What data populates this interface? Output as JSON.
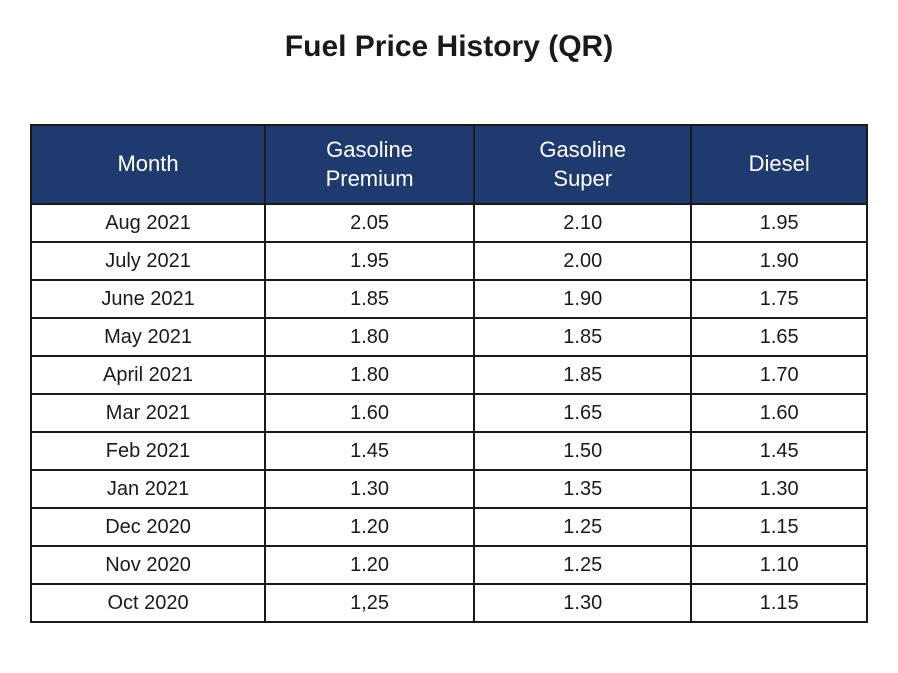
{
  "title": "Fuel Price History (QR)",
  "table": {
    "type": "table",
    "header_bg_color": "#1e3a6e",
    "header_text_color": "#ffffff",
    "border_color": "#1a1a1a",
    "cell_bg_color": "#ffffff",
    "cell_text_color": "#1a1a1a",
    "title_fontsize": 30,
    "header_fontsize": 22,
    "cell_fontsize": 20,
    "columns": [
      {
        "key": "month",
        "label": "Month",
        "width_pct": 28
      },
      {
        "key": "premium",
        "label": "Gasoline\nPremium",
        "width_pct": 25
      },
      {
        "key": "super",
        "label": "Gasoline\nSuper",
        "width_pct": 26
      },
      {
        "key": "diesel",
        "label": "Diesel",
        "width_pct": 21
      }
    ],
    "rows": [
      {
        "month": "Aug 2021",
        "premium": "2.05",
        "super": "2.10",
        "diesel": "1.95"
      },
      {
        "month": "July 2021",
        "premium": "1.95",
        "super": "2.00",
        "diesel": "1.90"
      },
      {
        "month": "June 2021",
        "premium": "1.85",
        "super": "1.90",
        "diesel": "1.75"
      },
      {
        "month": "May 2021",
        "premium": "1.80",
        "super": "1.85",
        "diesel": "1.65"
      },
      {
        "month": "April 2021",
        "premium": "1.80",
        "super": "1.85",
        "diesel": "1.70"
      },
      {
        "month": "Mar 2021",
        "premium": "1.60",
        "super": "1.65",
        "diesel": "1.60"
      },
      {
        "month": "Feb 2021",
        "premium": "1.45",
        "super": "1.50",
        "diesel": "1.45"
      },
      {
        "month": "Jan 2021",
        "premium": "1.30",
        "super": "1.35",
        "diesel": "1.30"
      },
      {
        "month": "Dec 2020",
        "premium": "1.20",
        "super": "1.25",
        "diesel": "1.15"
      },
      {
        "month": "Nov 2020",
        "premium": "1.20",
        "super": "1.25",
        "diesel": "1.10"
      },
      {
        "month": "Oct 2020",
        "premium": "1,25",
        "super": "1.30",
        "diesel": "1.15"
      }
    ]
  }
}
